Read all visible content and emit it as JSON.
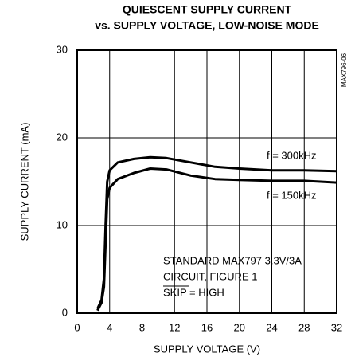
{
  "chart_data": {
    "type": "line",
    "title": "QUIESCENT SUPPLY CURRENT",
    "subtitle": "vs. SUPPLY VOLTAGE, LOW-NOISE MODE",
    "x_label": "SUPPLY VOLTAGE (V)",
    "y_label": "SUPPLY CURRENT (mA)",
    "x": [
      2.5,
      3.0,
      3.3,
      3.5,
      3.7,
      4,
      5,
      7,
      9,
      11,
      14,
      17,
      20,
      24,
      28,
      32
    ],
    "series": [
      {
        "name": "f = 300kHz",
        "color": "#000000",
        "values": [
          0.5,
          1.5,
          4,
          10,
          15,
          16.3,
          17.2,
          17.6,
          17.8,
          17.7,
          17.2,
          16.7,
          16.5,
          16.3,
          16.3,
          16.2
        ]
      },
      {
        "name": "f = 150kHz",
        "color": "#000000",
        "values": [
          0.3,
          1.2,
          3,
          8,
          13,
          14.3,
          15.3,
          16,
          16.5,
          16.4,
          15.7,
          15.3,
          15.2,
          15.1,
          15.1,
          14.9
        ]
      }
    ],
    "xlim": [
      0,
      32
    ],
    "xticks": [
      0,
      4,
      8,
      12,
      16,
      20,
      24,
      28,
      32
    ],
    "ylim": [
      0,
      30
    ],
    "yticks": [
      0,
      10,
      20,
      30
    ],
    "grid": true,
    "annotations": [
      "STANDARD MAX797 3.3V/3A",
      "CIRCUIT, FIGURE 1",
      "SKIP = HIGH",
      "MAX796-06"
    ]
  }
}
